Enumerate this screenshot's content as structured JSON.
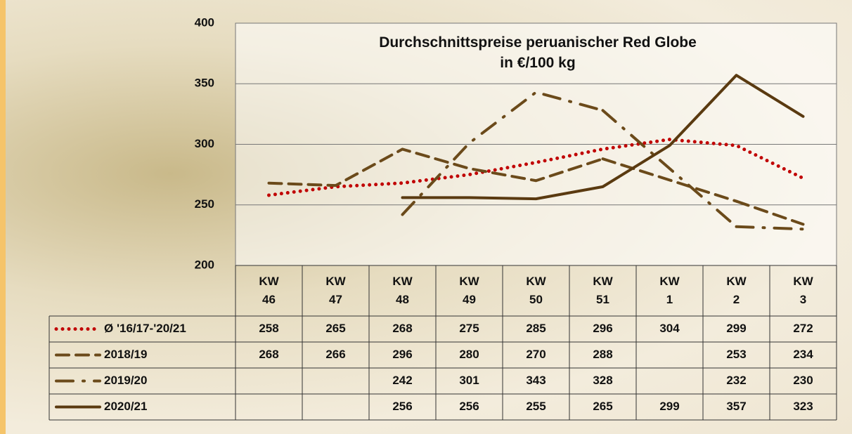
{
  "chart_data": {
    "type": "line",
    "title": "Durchschnittspreise peruanischer Red Globe\nin €/100 kg",
    "categories": [
      "KW\n46",
      "KW\n47",
      "KW\n48",
      "KW\n49",
      "KW\n50",
      "KW\n51",
      "KW\n1",
      "KW\n2",
      "KW\n3"
    ],
    "series": [
      {
        "name": "Ø '16/17-'20/21",
        "color": "#c00000",
        "dash": "dotted",
        "values": [
          258,
          265,
          268,
          275,
          285,
          296,
          304,
          299,
          272
        ]
      },
      {
        "name": "2018/19",
        "color": "#6b4a1a",
        "dash": "dashed",
        "values": [
          268,
          266,
          296,
          280,
          270,
          288,
          null,
          253,
          234
        ]
      },
      {
        "name": "2019/20",
        "color": "#6b4a1a",
        "dash": "dashdot",
        "values": [
          null,
          null,
          242,
          301,
          343,
          328,
          null,
          232,
          230
        ]
      },
      {
        "name": "2020/21",
        "color": "#5a3a10",
        "dash": "solid",
        "values": [
          null,
          null,
          256,
          256,
          255,
          265,
          299,
          357,
          323
        ]
      }
    ],
    "ylim": [
      200,
      400
    ],
    "yticks": [
      200,
      250,
      300,
      350,
      400
    ],
    "grid": true,
    "connect_gaps": true,
    "data_table": true
  }
}
